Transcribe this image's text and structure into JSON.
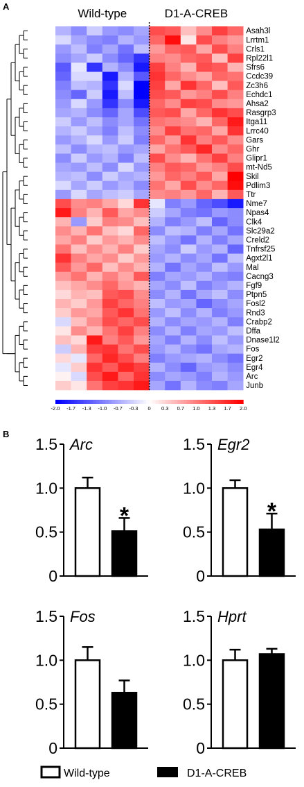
{
  "panel_a_label": "A",
  "panel_b_label": "B",
  "chart_data": [
    {
      "type": "heatmap",
      "column_groups": [
        "Wild-type",
        "D1-A-CREB"
      ],
      "columns_per_group": 6,
      "genes": [
        "Asah3l",
        "Lrrtm1",
        "Crls1",
        "Rpl22l1",
        "Sfrs6",
        "Ccdc39",
        "Zc3h6",
        "Echdc1",
        "Ahsa2",
        "Rasgrp3",
        "Itga11",
        "Lrrc40",
        "Gars",
        "Ghr",
        "Glipr1",
        "mt-Nd5",
        "Skil",
        "Pdlim3",
        "Ttr",
        "Nme7",
        "Npas4",
        "Clk4",
        "Slc29a2",
        "Creld2",
        "Tnfrsf25",
        "Agxt2l1",
        "Mal",
        "Cacng3",
        "Fgf9",
        "Ptpn5",
        "Fosl2",
        "Rnd3",
        "Crabp2",
        "Dffa",
        "Dnase1l2",
        "Fos",
        "Egr2",
        "Egr4",
        "Arc",
        "Junb"
      ],
      "values": [
        [
          -0.6,
          -0.9,
          -0.4,
          -0.8,
          -0.9,
          -0.7,
          1.4,
          1.3,
          0.5,
          0.9,
          1.5,
          1.2
        ],
        [
          -0.3,
          -0.7,
          -0.9,
          -1.0,
          -0.6,
          -0.8,
          1.2,
          1.9,
          0.2,
          1.4,
          1.0,
          0.8
        ],
        [
          -0.8,
          -0.5,
          -1.0,
          -0.7,
          -1.1,
          -0.5,
          0.8,
          1.2,
          1.3,
          0.7,
          1.4,
          1.0
        ],
        [
          -0.9,
          -0.7,
          -0.4,
          -0.9,
          -1.2,
          -1.6,
          1.0,
          0.9,
          1.2,
          1.3,
          0.5,
          1.5
        ],
        [
          -1.3,
          -0.2,
          -1.6,
          -0.6,
          -0.9,
          -1.8,
          1.5,
          1.0,
          0.6,
          1.4,
          1.3,
          0.6
        ],
        [
          -1.2,
          -0.3,
          -0.3,
          -1.8,
          -0.6,
          -1.3,
          1.6,
          1.2,
          0.9,
          0.7,
          1.2,
          1.1
        ],
        [
          -1.0,
          -0.5,
          -0.6,
          -1.6,
          -0.3,
          -2.0,
          1.5,
          0.7,
          1.6,
          1.2,
          0.5,
          1.3
        ],
        [
          -0.9,
          -1.2,
          -0.4,
          -1.8,
          -0.5,
          -2.0,
          1.4,
          1.3,
          0.8,
          1.0,
          1.4,
          1.0
        ],
        [
          -0.8,
          -0.3,
          -0.8,
          -1.6,
          -0.9,
          -1.8,
          1.2,
          0.9,
          1.5,
          1.4,
          0.9,
          0.8
        ],
        [
          -0.7,
          -0.6,
          -0.9,
          -1.2,
          -0.7,
          -1.4,
          1.3,
          1.4,
          0.7,
          1.2,
          1.6,
          1.4
        ],
        [
          -0.4,
          -0.8,
          -0.5,
          -0.9,
          -0.7,
          -1.1,
          1.1,
          1.0,
          0.9,
          0.6,
          1.2,
          1.8
        ],
        [
          -0.6,
          -0.4,
          -0.7,
          -1.0,
          -0.5,
          -0.9,
          0.9,
          1.5,
          1.1,
          1.2,
          0.7,
          1.6
        ],
        [
          -0.8,
          -0.6,
          -0.3,
          -0.8,
          -0.4,
          -1.0,
          1.2,
          0.8,
          1.6,
          1.0,
          1.3,
          0.9
        ],
        [
          -0.5,
          -0.9,
          -0.6,
          -0.5,
          -0.8,
          -0.7,
          0.7,
          1.1,
          1.3,
          1.7,
          0.9,
          1.2
        ],
        [
          -0.9,
          -0.4,
          -0.8,
          -0.6,
          -1.0,
          -0.5,
          1.4,
          0.9,
          0.6,
          1.1,
          1.5,
          1.0
        ],
        [
          -0.7,
          -0.8,
          -0.5,
          -0.9,
          -0.3,
          -0.8,
          1.0,
          1.3,
          1.2,
          0.8,
          1.0,
          1.4
        ],
        [
          -0.6,
          -0.5,
          -0.9,
          -0.4,
          -0.7,
          -0.6,
          0.8,
          1.2,
          1.0,
          1.3,
          0.7,
          2.0
        ],
        [
          -0.3,
          -0.7,
          -0.4,
          -0.8,
          -0.6,
          -0.9,
          1.1,
          0.7,
          1.4,
          0.9,
          1.2,
          1.9
        ],
        [
          -0.8,
          -0.3,
          -0.7,
          -0.5,
          -0.4,
          -0.7,
          0.9,
          1.0,
          0.8,
          1.2,
          0.6,
          1.3
        ],
        [
          1.4,
          0.9,
          1.0,
          0.7,
          0.3,
          1.6,
          -0.2,
          -1.0,
          -0.8,
          -1.2,
          -1.4,
          -1.8
        ],
        [
          1.8,
          1.0,
          0.6,
          1.3,
          0.7,
          0.9,
          -0.4,
          -0.7,
          -1.0,
          -1.1,
          -0.8,
          -0.9
        ],
        [
          0.6,
          -0.8,
          0.4,
          1.0,
          0.9,
          0.5,
          -0.6,
          -1.0,
          -0.8,
          -0.5,
          -1.2,
          -0.9
        ],
        [
          0.9,
          0.6,
          1.1,
          0.5,
          0.3,
          1.2,
          -0.9,
          -0.5,
          -0.6,
          -1.0,
          -0.7,
          -1.1
        ],
        [
          0.7,
          1.0,
          0.4,
          0.8,
          0.6,
          0.9,
          -0.5,
          -0.8,
          -1.1,
          -0.6,
          -1.0,
          -0.7
        ],
        [
          1.1,
          0.5,
          0.9,
          0.6,
          1.0,
          0.4,
          -0.7,
          -0.9,
          -0.4,
          -0.8,
          -0.6,
          -1.2
        ],
        [
          1.6,
          1.0,
          0.7,
          0.9,
          0.4,
          0.8,
          -0.8,
          -0.6,
          -0.9,
          -0.7,
          -1.1,
          -0.5
        ],
        [
          1.3,
          0.8,
          1.2,
          0.5,
          0.9,
          0.6,
          -0.6,
          -1.1,
          -0.7,
          -0.9,
          -0.5,
          -0.8
        ],
        [
          0.8,
          1.1,
          0.6,
          1.0,
          0.7,
          1.3,
          -1.0,
          -0.7,
          -0.8,
          -0.6,
          -0.9,
          -1.0
        ],
        [
          0.5,
          0.7,
          0.9,
          1.2,
          0.8,
          0.6,
          -0.7,
          -0.9,
          -0.5,
          -1.0,
          -0.8,
          -0.6
        ],
        [
          0.3,
          0.6,
          0.5,
          1.3,
          1.4,
          0.9,
          -0.9,
          -0.6,
          -1.1,
          -0.7,
          -0.5,
          -0.9
        ],
        [
          0.6,
          0.4,
          0.8,
          1.5,
          1.2,
          1.0,
          -0.5,
          -0.8,
          -0.7,
          -1.2,
          -0.9,
          -0.7
        ],
        [
          0.4,
          0.8,
          0.7,
          1.3,
          1.6,
          1.1,
          -0.8,
          -0.5,
          -0.9,
          -0.6,
          -1.0,
          -0.8
        ],
        [
          -0.3,
          0.5,
          0.9,
          1.4,
          1.2,
          1.4,
          -0.6,
          -0.9,
          -0.7,
          -0.8,
          -0.6,
          -1.0
        ],
        [
          0.2,
          0.9,
          0.6,
          1.1,
          1.5,
          1.0,
          -0.9,
          -0.6,
          -1.0,
          -0.7,
          -0.8,
          -0.5
        ],
        [
          0.5,
          0.3,
          1.8,
          1.0,
          1.3,
          0.8,
          -0.7,
          -1.0,
          -0.6,
          -0.9,
          -0.5,
          -0.8
        ],
        [
          -0.4,
          0.6,
          1.5,
          1.6,
          1.1,
          1.4,
          -0.8,
          -0.6,
          -0.9,
          -1.1,
          -0.7,
          -0.6
        ],
        [
          0.3,
          -0.2,
          1.2,
          1.7,
          1.4,
          1.0,
          -1.0,
          -0.8,
          -0.7,
          -0.6,
          -0.9,
          -1.1
        ],
        [
          -0.2,
          0.4,
          1.6,
          1.3,
          1.7,
          1.5,
          -0.6,
          -0.9,
          -1.2,
          -0.8,
          -0.7,
          -0.9
        ],
        [
          0.1,
          -0.3,
          1.4,
          1.8,
          1.2,
          1.6,
          -0.9,
          -0.7,
          -0.8,
          -1.0,
          -0.6,
          -0.8
        ],
        [
          0.4,
          0.2,
          1.1,
          1.5,
          1.6,
          1.8,
          -0.7,
          -1.1,
          -0.6,
          -0.9,
          -1.0,
          -0.7
        ]
      ],
      "color_scale": {
        "ticks": [
          "-2.0",
          "-1.7",
          "-1.3",
          "-1.0",
          "-0.7",
          "-0.3",
          "0",
          "0.3",
          "0.7",
          "1.0",
          "1.3",
          "1.7",
          "2.0"
        ],
        "low_color": "#0000ff",
        "mid_color": "#ffffff",
        "high_color": "#ff0000"
      }
    },
    {
      "type": "bar",
      "panels": [
        {
          "gene": "Arc",
          "wild_type": 1.0,
          "wild_type_err": 0.12,
          "d1acreb": 0.51,
          "d1acreb_err": 0.15,
          "significant": true
        },
        {
          "gene": "Egr2",
          "wild_type": 1.0,
          "wild_type_err": 0.09,
          "d1acreb": 0.53,
          "d1acreb_err": 0.18,
          "significant": true
        },
        {
          "gene": "Fos",
          "wild_type": 1.0,
          "wild_type_err": 0.15,
          "d1acreb": 0.63,
          "d1acreb_err": 0.14,
          "significant": false
        },
        {
          "gene": "Hprt",
          "wild_type": 1.0,
          "wild_type_err": 0.12,
          "d1acreb": 1.07,
          "d1acreb_err": 0.06,
          "significant": false
        }
      ],
      "ylim": [
        0,
        1.5
      ],
      "yticks": [
        "0",
        "0.5",
        "1.0",
        "1.5"
      ],
      "significance_mark": "*",
      "legend": [
        "Wild-type",
        "D1-A-CREB"
      ]
    }
  ]
}
